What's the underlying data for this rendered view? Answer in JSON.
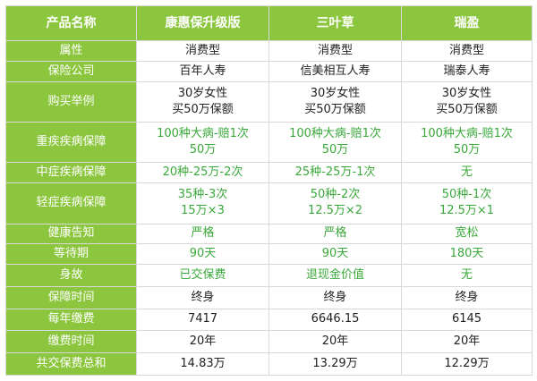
{
  "header": {
    "col0": "产品名称",
    "col1": "康惠保升级版",
    "col2": "三叶草",
    "col3": "瑞盈"
  },
  "colors": {
    "header_green": "#8cc63e",
    "value_green": "#3aa83a",
    "border": "#d8d8d8"
  },
  "rows": [
    {
      "label": "属性",
      "v1": "消费型",
      "v2": "消费型",
      "v3": "消费型"
    },
    {
      "label": "保险公司",
      "v1": "百年人寿",
      "v2": "信美相互人寿",
      "v3": "瑞泰人寿"
    },
    {
      "label": "购买举例",
      "v1": [
        "30岁女性",
        "买50万保额"
      ],
      "v2": [
        "30岁女性",
        "买50万保额"
      ],
      "v3": [
        "30岁女性",
        "买50万保额"
      ]
    },
    {
      "label": "重疾疾病保障",
      "v1": [
        "100种大病-赔1次",
        "50万"
      ],
      "v2": [
        "100种大病-赔1次",
        "50万"
      ],
      "v3": [
        "100种大病-赔1次",
        "50万"
      ]
    },
    {
      "label": "中症疾病保障",
      "v1": "20种-25万-2次",
      "v2": "25种-25万-1次",
      "v3": "无"
    },
    {
      "label": "轻症疾病保障",
      "v1": [
        "35种-3次",
        "15万×3"
      ],
      "v2": [
        "50种-2次",
        "12.5万×2"
      ],
      "v3": [
        "50种-1次",
        "12.5万×1"
      ]
    },
    {
      "label": "健康告知",
      "v1": "严格",
      "v2": "严格",
      "v3": "宽松"
    },
    {
      "label": "等待期",
      "v1": "90天",
      "v2": "90天",
      "v3": "180天"
    },
    {
      "label": "身故",
      "v1": "已交保费",
      "v2": "退现金价值",
      "v3": "无"
    },
    {
      "label": "保障时间",
      "v1": "终身",
      "v2": "终身",
      "v3": "终身"
    },
    {
      "label": "每年缴费",
      "v1": "7417",
      "v2": "6646.15",
      "v3": "6145"
    },
    {
      "label": "缴费时间",
      "v1": "20年",
      "v2": "20年",
      "v3": "20年"
    },
    {
      "label": "共交保费总和",
      "v1": "14.83万",
      "v2": "13.29万",
      "v3": "12.29万"
    }
  ]
}
